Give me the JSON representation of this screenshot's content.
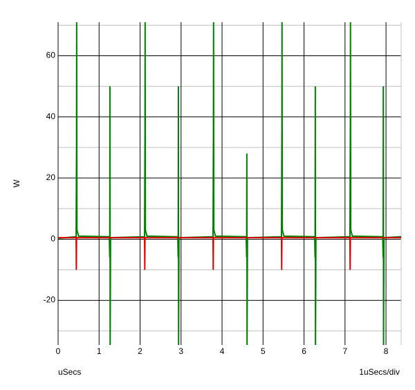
{
  "chart_data": {
    "type": "line",
    "y_label": "W",
    "x_label": "uSecs",
    "x_scale_label": "1uSecs/div",
    "xlim": [
      0,
      8.37
    ],
    "ylim": [
      -34.6,
      71
    ],
    "xticks": [
      0,
      1,
      2,
      3,
      4,
      5,
      6,
      7,
      8
    ],
    "yticks": [
      -20,
      0,
      20,
      40,
      60
    ],
    "y_minor_grid": [
      -30,
      -10,
      10,
      30,
      50,
      70
    ],
    "grid": true,
    "series": [
      {
        "color": "#008000",
        "x": [
          0,
          0.44,
          0.45,
          0.453,
          0.46,
          0.5,
          1.25,
          1.26,
          1.265,
          1.27,
          1.28,
          2.11,
          2.12,
          2.123,
          2.13,
          2.17,
          2.92,
          2.93,
          2.935,
          2.94,
          2.95,
          3.78,
          3.79,
          3.793,
          3.8,
          3.84,
          4.59,
          4.6,
          4.605,
          4.61,
          4.62,
          5.45,
          5.46,
          5.463,
          5.47,
          5.51,
          6.26,
          6.27,
          6.275,
          6.28,
          6.29,
          7.12,
          7.13,
          7.133,
          7.14,
          7.18,
          7.92,
          7.93,
          7.935,
          7.94,
          7.95,
          8.37
        ],
        "values": [
          0.3,
          0.8,
          30,
          71,
          3,
          1,
          0.8,
          -6,
          50,
          -35,
          0.5,
          0.8,
          35,
          71,
          3,
          1,
          0.8,
          -6,
          50,
          -35,
          0.5,
          0.8,
          36,
          71,
          3,
          1,
          0.8,
          -6,
          28,
          -35,
          0.5,
          0.8,
          36,
          71,
          3,
          1,
          0.8,
          -6,
          50,
          -35,
          0.5,
          0.8,
          36,
          71,
          3,
          1,
          0.8,
          -6,
          50,
          -35,
          0.5,
          0.8
        ]
      },
      {
        "color": "#e00000",
        "x": [
          0,
          0.44,
          0.445,
          0.45,
          2.11,
          2.115,
          2.12,
          3.78,
          3.785,
          3.79,
          5.45,
          5.455,
          5.46,
          7.12,
          7.125,
          7.13,
          8.37
        ],
        "values": [
          0.5,
          0.5,
          -10,
          0.5,
          0.5,
          -10,
          0.5,
          0.5,
          -10,
          0.5,
          0.5,
          -10,
          0.5,
          0.5,
          -10,
          0.5,
          0.5
        ]
      }
    ]
  }
}
